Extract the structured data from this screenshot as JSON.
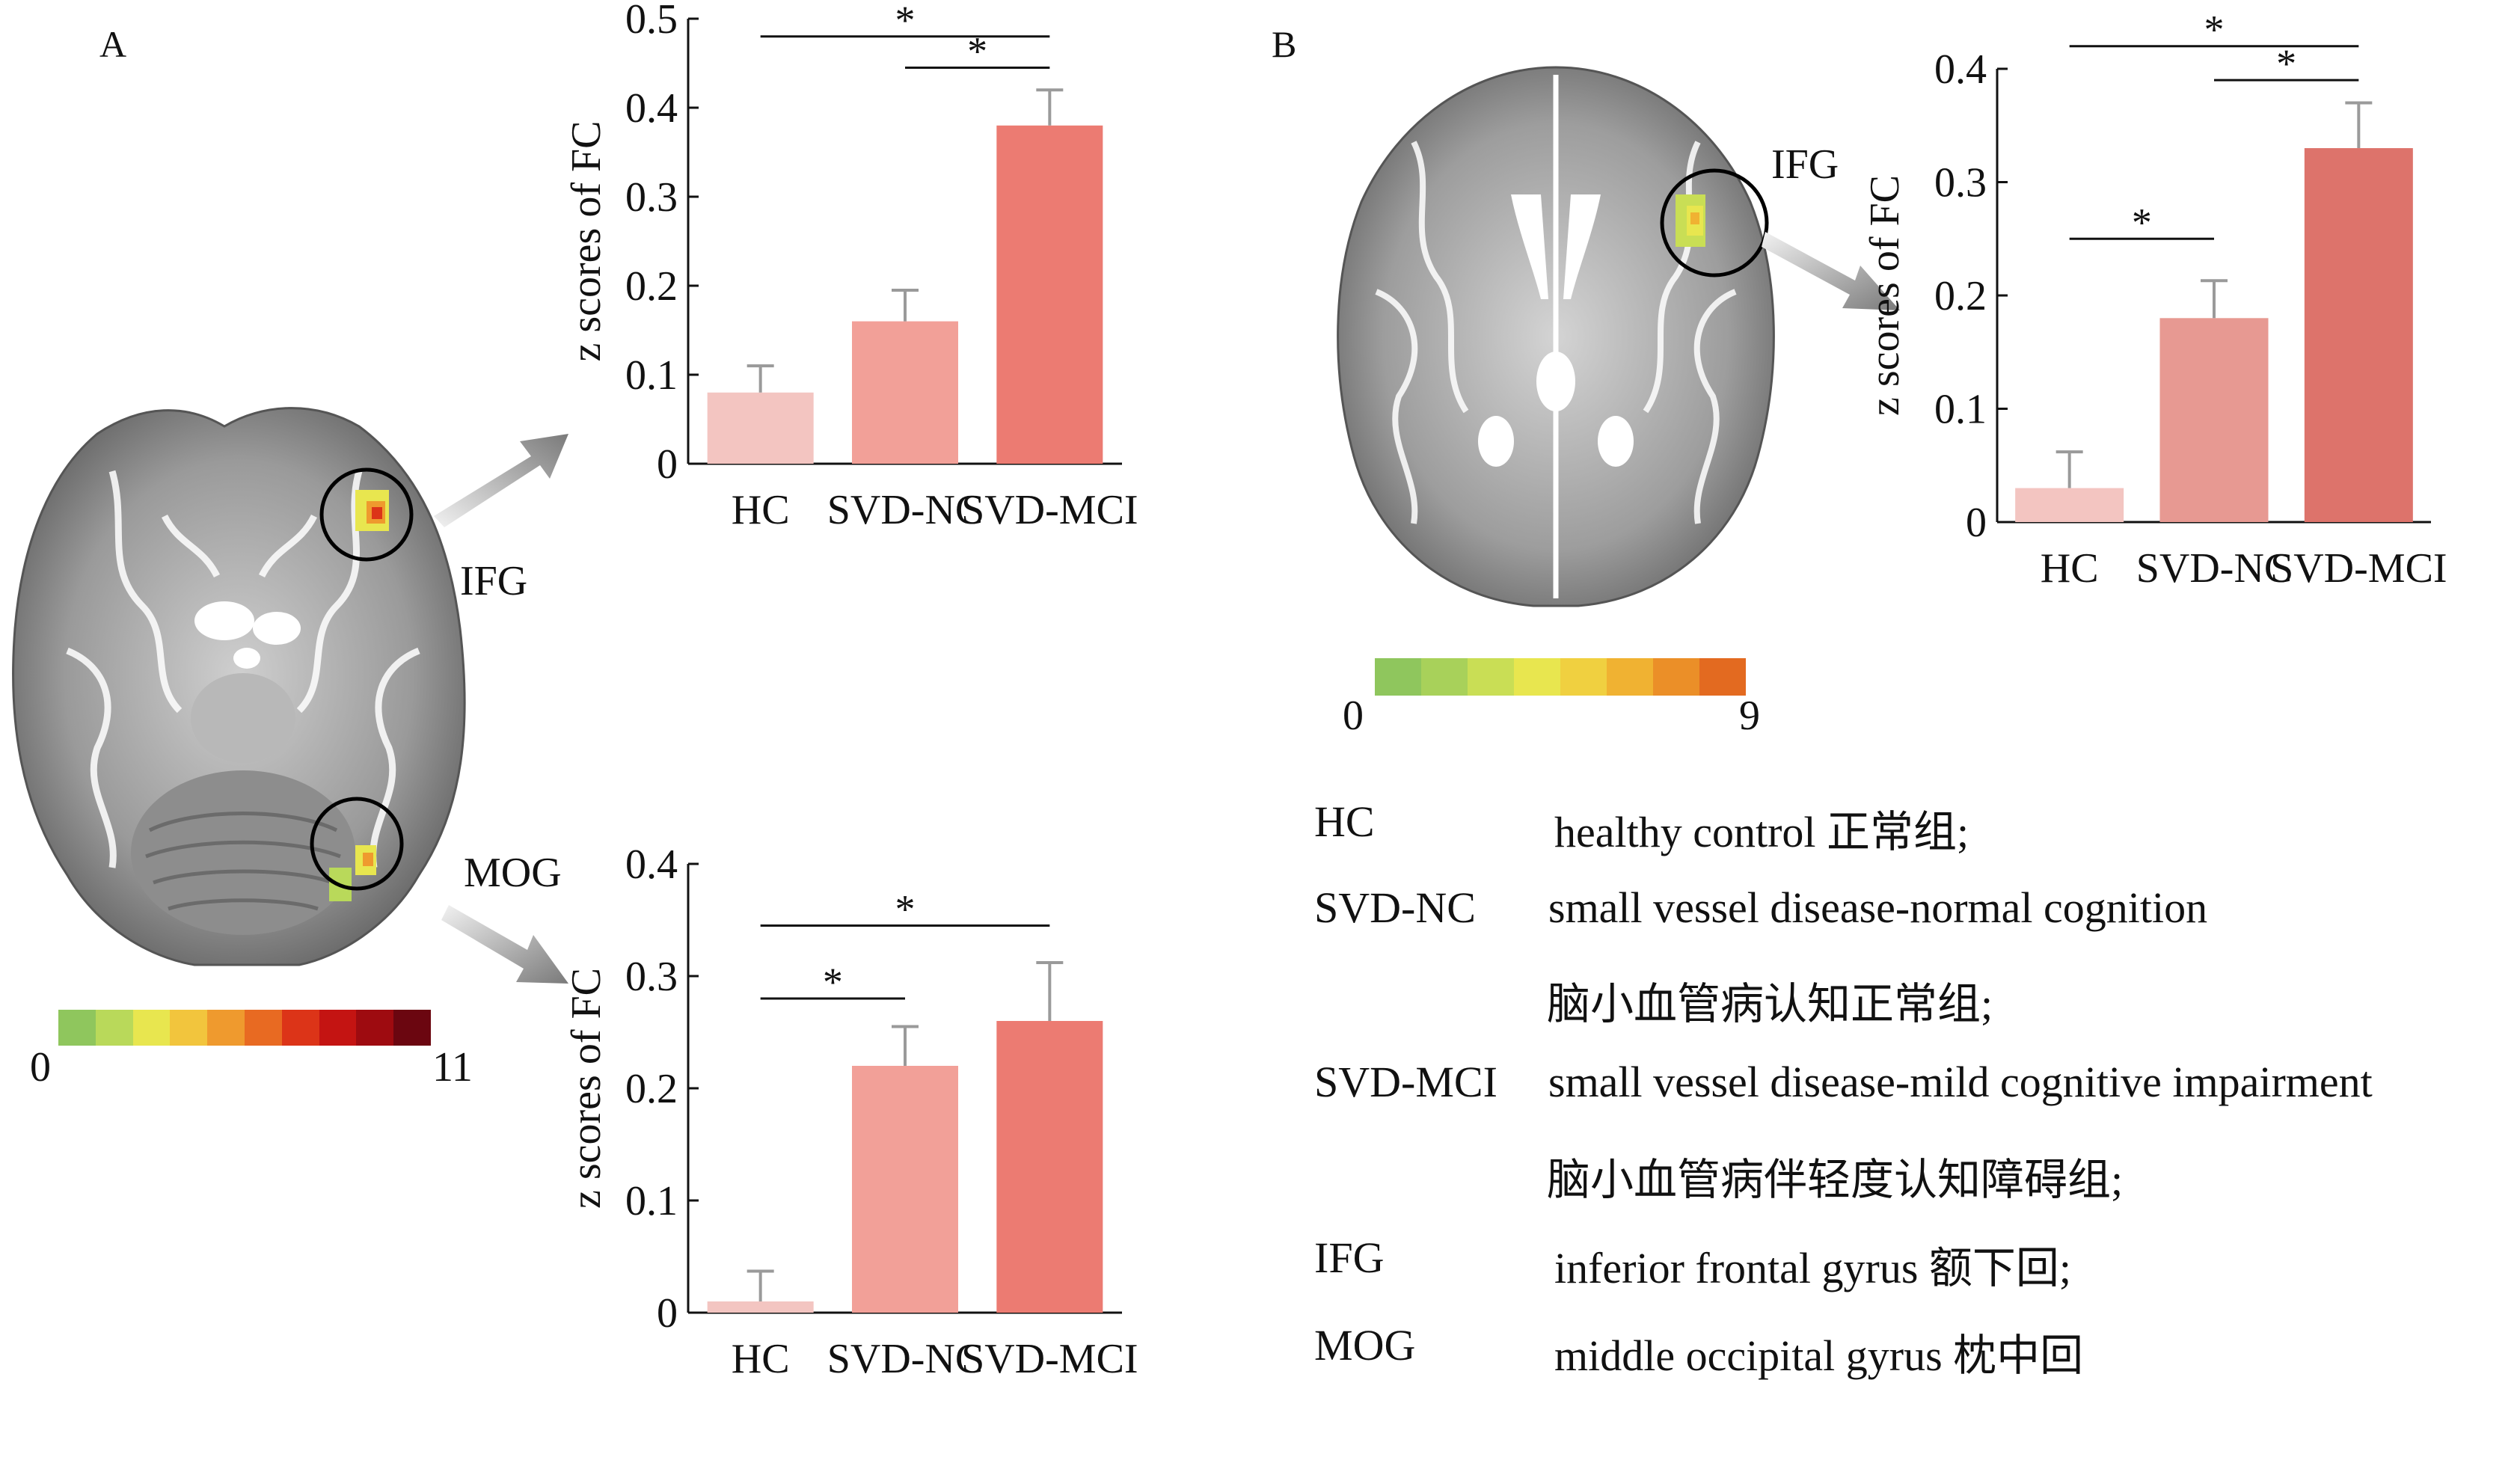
{
  "panels": {
    "a": "A",
    "b": "B"
  },
  "roi": {
    "ifg": "IFG",
    "mog": "MOG"
  },
  "colorbars": {
    "a": {
      "min": "0",
      "max": "11",
      "colors": [
        "#8fc65d",
        "#b9d95a",
        "#e8e64f",
        "#f2c53d",
        "#ef9a2e",
        "#e86a22",
        "#dc3418",
        "#c41412",
        "#9e0b10",
        "#6b0610"
      ]
    },
    "b": {
      "min": "0",
      "max": "9",
      "colors": [
        "#8fc65d",
        "#a8d15a",
        "#c9de55",
        "#e8e64f",
        "#f0d040",
        "#f0b232",
        "#eb8f28",
        "#e36a20"
      ]
    }
  },
  "chart_data": [
    {
      "id": "a-ifg",
      "type": "bar",
      "categories": [
        "HC",
        "SVD-NC",
        "SVD-MCI"
      ],
      "values": [
        0.08,
        0.16,
        0.38
      ],
      "errors": [
        0.03,
        0.035,
        0.04
      ],
      "colors": [
        "#f3c5c1",
        "#f2a098",
        "#ec7b72"
      ],
      "ylabel": "z scores of FC",
      "ylim": [
        0,
        0.5
      ],
      "yticks": [
        0,
        0.1,
        0.2,
        0.3,
        0.4,
        0.5
      ],
      "ytick_labels": [
        "0",
        "0.1",
        "0.2",
        "0.3",
        "0.4",
        "0.5"
      ],
      "significance": [
        {
          "from": 0,
          "to": 2,
          "level": 0.48,
          "label": "*"
        },
        {
          "from": 1,
          "to": 2,
          "level": 0.445,
          "label": "*"
        }
      ]
    },
    {
      "id": "a-mog",
      "type": "bar",
      "categories": [
        "HC",
        "SVD-NC",
        "SVD-MCI"
      ],
      "values": [
        0.01,
        0.22,
        0.26
      ],
      "errors": [
        0.027,
        0.035,
        0.052
      ],
      "colors": [
        "#f3c5c1",
        "#f2a098",
        "#ec7b72"
      ],
      "ylabel": "z scores of FC",
      "ylim": [
        0,
        0.4
      ],
      "yticks": [
        0,
        0.1,
        0.2,
        0.3,
        0.4
      ],
      "ytick_labels": [
        "0",
        "0.1",
        "0.2",
        "0.3",
        "0.4"
      ],
      "significance": [
        {
          "from": 0,
          "to": 2,
          "level": 0.345,
          "label": "*"
        },
        {
          "from": 0,
          "to": 1,
          "level": 0.28,
          "label": "*"
        }
      ]
    },
    {
      "id": "b-ifg",
      "type": "bar",
      "categories": [
        "HC",
        "SVD-NC",
        "SVD-MCI"
      ],
      "values": [
        0.03,
        0.18,
        0.33
      ],
      "errors": [
        0.032,
        0.033,
        0.04
      ],
      "colors": [
        "#f3c5c1",
        "#e79992",
        "#dd736b"
      ],
      "ylabel": "z scores of FC",
      "ylim": [
        0,
        0.4
      ],
      "yticks": [
        0,
        0.1,
        0.2,
        0.3,
        0.4
      ],
      "ytick_labels": [
        "0",
        "0.1",
        "0.2",
        "0.3",
        "0.4"
      ],
      "significance": [
        {
          "from": 0,
          "to": 2,
          "level": 0.42,
          "label": "*"
        },
        {
          "from": 1,
          "to": 2,
          "level": 0.39,
          "label": "*"
        },
        {
          "from": 0,
          "to": 1,
          "level": 0.25,
          "label": "*"
        }
      ]
    }
  ],
  "legend": [
    {
      "abbr": "HC",
      "desc": "healthy control 正常组;"
    },
    {
      "abbr": "SVD-NC",
      "desc": "small vessel disease-normal cognition"
    },
    {
      "abbr": "",
      "desc": "脑小血管病认知正常组;"
    },
    {
      "abbr": "SVD-MCI",
      "desc": "small vessel disease-mild cognitive impairment"
    },
    {
      "abbr": "",
      "desc": "脑小血管病伴轻度认知障碍组;"
    },
    {
      "abbr": "IFG",
      "desc": "inferior frontal gyrus 额下回;"
    },
    {
      "abbr": "MOG",
      "desc": "middle occipital gyrus 枕中回"
    }
  ]
}
